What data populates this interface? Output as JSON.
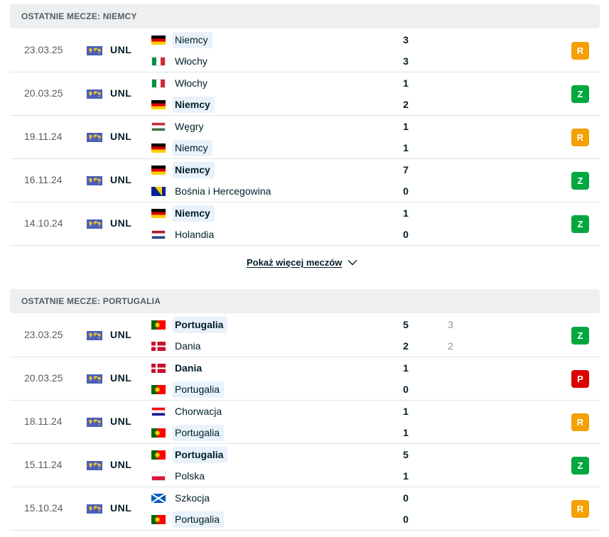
{
  "colors": {
    "win": "#00a83f",
    "draw": "#f3a000",
    "loss": "#dc0000"
  },
  "sections": [
    {
      "header": "OSTATNIE MECZE: NIEMCY",
      "more_label": "Pokaż więcej meczów",
      "matches": [
        {
          "date": "23.03.25",
          "league": "UNL",
          "home": {
            "name": "Niemcy",
            "flag": "de",
            "fav": true,
            "bold": false
          },
          "away": {
            "name": "Włochy",
            "flag": "it",
            "fav": false,
            "bold": false
          },
          "home_score": "3",
          "away_score": "3",
          "home_pen": "",
          "away_pen": "",
          "result": "R",
          "result_type": "draw"
        },
        {
          "date": "20.03.25",
          "league": "UNL",
          "home": {
            "name": "Włochy",
            "flag": "it",
            "fav": false,
            "bold": false
          },
          "away": {
            "name": "Niemcy",
            "flag": "de",
            "fav": true,
            "bold": true
          },
          "home_score": "1",
          "away_score": "2",
          "home_pen": "",
          "away_pen": "",
          "result": "Z",
          "result_type": "win"
        },
        {
          "date": "19.11.24",
          "league": "UNL",
          "home": {
            "name": "Węgry",
            "flag": "hu",
            "fav": false,
            "bold": false
          },
          "away": {
            "name": "Niemcy",
            "flag": "de",
            "fav": true,
            "bold": false
          },
          "home_score": "1",
          "away_score": "1",
          "home_pen": "",
          "away_pen": "",
          "result": "R",
          "result_type": "draw"
        },
        {
          "date": "16.11.24",
          "league": "UNL",
          "home": {
            "name": "Niemcy",
            "flag": "de",
            "fav": true,
            "bold": true
          },
          "away": {
            "name": "Bośnia i Hercegowina",
            "flag": "ba",
            "fav": false,
            "bold": false
          },
          "home_score": "7",
          "away_score": "0",
          "home_pen": "",
          "away_pen": "",
          "result": "Z",
          "result_type": "win"
        },
        {
          "date": "14.10.24",
          "league": "UNL",
          "home": {
            "name": "Niemcy",
            "flag": "de",
            "fav": true,
            "bold": true
          },
          "away": {
            "name": "Holandia",
            "flag": "nl",
            "fav": false,
            "bold": false
          },
          "home_score": "1",
          "away_score": "0",
          "home_pen": "",
          "away_pen": "",
          "result": "Z",
          "result_type": "win"
        }
      ]
    },
    {
      "header": "OSTATNIE MECZE: PORTUGALIA",
      "matches": [
        {
          "date": "23.03.25",
          "league": "UNL",
          "home": {
            "name": "Portugalia",
            "flag": "pt",
            "fav": true,
            "bold": true
          },
          "away": {
            "name": "Dania",
            "flag": "dk",
            "fav": false,
            "bold": false
          },
          "home_score": "5",
          "away_score": "2",
          "home_pen": "3",
          "away_pen": "2",
          "result": "Z",
          "result_type": "win"
        },
        {
          "date": "20.03.25",
          "league": "UNL",
          "home": {
            "name": "Dania",
            "flag": "dk",
            "fav": false,
            "bold": true
          },
          "away": {
            "name": "Portugalia",
            "flag": "pt",
            "fav": true,
            "bold": false
          },
          "home_score": "1",
          "away_score": "0",
          "home_pen": "",
          "away_pen": "",
          "result": "P",
          "result_type": "loss"
        },
        {
          "date": "18.11.24",
          "league": "UNL",
          "home": {
            "name": "Chorwacja",
            "flag": "hr",
            "fav": false,
            "bold": false
          },
          "away": {
            "name": "Portugalia",
            "flag": "pt",
            "fav": true,
            "bold": false
          },
          "home_score": "1",
          "away_score": "1",
          "home_pen": "",
          "away_pen": "",
          "result": "R",
          "result_type": "draw"
        },
        {
          "date": "15.11.24",
          "league": "UNL",
          "home": {
            "name": "Portugalia",
            "flag": "pt",
            "fav": true,
            "bold": true
          },
          "away": {
            "name": "Polska",
            "flag": "pl",
            "fav": false,
            "bold": false
          },
          "home_score": "5",
          "away_score": "1",
          "home_pen": "",
          "away_pen": "",
          "result": "Z",
          "result_type": "win"
        },
        {
          "date": "15.10.24",
          "league": "UNL",
          "home": {
            "name": "Szkocja",
            "flag": "sco",
            "fav": false,
            "bold": false
          },
          "away": {
            "name": "Portugalia",
            "flag": "pt",
            "fav": true,
            "bold": false
          },
          "home_score": "0",
          "away_score": "0",
          "home_pen": "",
          "away_pen": "",
          "result": "R",
          "result_type": "draw"
        }
      ]
    }
  ]
}
